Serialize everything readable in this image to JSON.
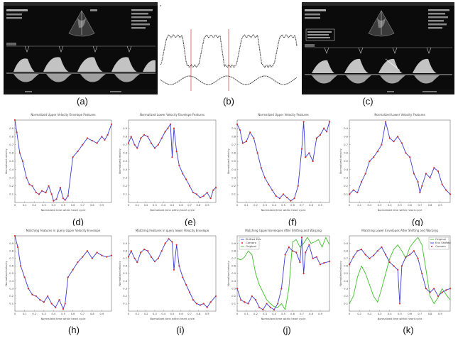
{
  "captions": {
    "a": "(a)",
    "b": "(b)",
    "c": "(c)",
    "d": "(d)",
    "e": "(e)",
    "f": "(f)",
    "g": "(g)",
    "h": "(h)",
    "i": "(i)",
    "j": "(j)",
    "k": "(k)"
  },
  "colors": {
    "ultrasound_bg": "#0b0b0b",
    "series_blue": "#3b3bd6",
    "marker_red": "#d42a2a",
    "series_green": "#3fbf2a",
    "trace_red_line": "#e05050"
  },
  "chart_data": [
    {
      "id": "d",
      "type": "line",
      "title": "Normalized Upper Velocity Envelope Features",
      "xlabel": "Normalized time within heart cycle",
      "ylabel": "Normalized velocity",
      "xlim": [
        0,
        1
      ],
      "ylim": [
        0,
        1
      ],
      "x_ticks": [
        "0",
        "0.1",
        "0.2",
        "0.3",
        "0.4",
        "0.5",
        "0.6",
        "0.7",
        "0.8",
        "0.9"
      ],
      "y_ticks": [
        "0.1",
        "0.2",
        "0.3",
        "0.4",
        "0.5",
        "0.6",
        "0.7",
        "0.8",
        "0.9"
      ],
      "series": [
        {
          "x": [
            0,
            0.02,
            0.05,
            0.08,
            0.12,
            0.15,
            0.18,
            0.22,
            0.25,
            0.28,
            0.32,
            0.35,
            0.38,
            0.4,
            0.43,
            0.47,
            0.5,
            0.52,
            0.55,
            0.6,
            0.65,
            0.7,
            0.75,
            0.8,
            0.85,
            0.9,
            0.93,
            0.96,
            1.0
          ],
          "y": [
            1.0,
            0.85,
            0.6,
            0.5,
            0.3,
            0.22,
            0.2,
            0.12,
            0.1,
            0.14,
            0.12,
            0.2,
            0.1,
            0.02,
            0.04,
            0.18,
            0.05,
            0.03,
            0.08,
            0.55,
            0.62,
            0.7,
            0.78,
            0.75,
            0.72,
            0.8,
            0.76,
            0.82,
            0.95
          ]
        }
      ]
    },
    {
      "id": "e",
      "type": "line",
      "title": "Normalized Lower Velocity Envelope Features",
      "xlabel": "Normalized time within heart cycle",
      "ylabel": "Normalized velocity",
      "xlim": [
        0,
        1
      ],
      "ylim": [
        0,
        1
      ],
      "x_ticks": [
        "0",
        "0.1",
        "0.2",
        "0.3",
        "0.4",
        "0.5",
        "0.6",
        "0.7",
        "0.8",
        "0.9"
      ],
      "y_ticks": [
        "0.1",
        "0.2",
        "0.3",
        "0.4",
        "0.5",
        "0.6",
        "0.7",
        "0.8",
        "0.9"
      ],
      "series": [
        {
          "x": [
            0,
            0.03,
            0.07,
            0.1,
            0.14,
            0.18,
            0.22,
            0.26,
            0.3,
            0.34,
            0.38,
            0.42,
            0.45,
            0.48,
            0.5,
            0.52,
            0.55,
            0.58,
            0.62,
            0.66,
            0.7,
            0.74,
            0.78,
            0.82,
            0.86,
            0.9,
            0.94,
            0.97,
            1.0
          ],
          "y": [
            0.72,
            0.8,
            0.7,
            0.66,
            0.78,
            0.82,
            0.8,
            0.72,
            0.66,
            0.7,
            0.78,
            0.86,
            0.9,
            0.95,
            0.55,
            0.9,
            0.62,
            0.45,
            0.35,
            0.28,
            0.2,
            0.12,
            0.1,
            0.06,
            0.08,
            0.12,
            0.05,
            0.15,
            0.18
          ]
        }
      ]
    },
    {
      "id": "f",
      "type": "line",
      "title": "Normalized Upper Velocity Features",
      "xlabel": "Normalized time within heart cycle",
      "ylabel": "Normalized velocity",
      "xlim": [
        0,
        1
      ],
      "ylim": [
        0,
        1
      ],
      "x_ticks": [
        "0",
        "0.1",
        "0.2",
        "0.3",
        "0.4",
        "0.5",
        "0.6",
        "0.7",
        "0.8",
        "0.9"
      ],
      "y_ticks": [
        "0.1",
        "0.2",
        "0.3",
        "0.4",
        "0.5",
        "0.6",
        "0.7",
        "0.8",
        "0.9"
      ],
      "series": [
        {
          "x": [
            0,
            0.03,
            0.06,
            0.1,
            0.14,
            0.18,
            0.22,
            0.26,
            0.3,
            0.34,
            0.38,
            0.42,
            0.46,
            0.5,
            0.54,
            0.58,
            0.62,
            0.66,
            0.7,
            0.72,
            0.74,
            0.78,
            0.82,
            0.86,
            0.9,
            0.94,
            0.97,
            1.0
          ],
          "y": [
            0.95,
            0.88,
            0.72,
            0.74,
            0.85,
            0.78,
            0.6,
            0.42,
            0.3,
            0.22,
            0.15,
            0.08,
            0.05,
            0.1,
            0.06,
            0.02,
            0.05,
            0.2,
            0.65,
            0.98,
            0.55,
            0.6,
            0.5,
            0.78,
            0.82,
            0.9,
            0.86,
            0.98
          ]
        }
      ]
    },
    {
      "id": "g",
      "type": "line",
      "title": "Normalized Lower Velocity Features",
      "xlabel": "Normalized time within heart cycle",
      "ylabel": "Normalized velocity",
      "xlim": [
        0,
        1
      ],
      "ylim": [
        0,
        1
      ],
      "x_ticks": [
        "0",
        "0.1",
        "0.2",
        "0.3",
        "0.4",
        "0.5",
        "0.6",
        "0.7",
        "0.8",
        "0.9"
      ],
      "y_ticks": [
        "0.1",
        "0.2",
        "0.3",
        "0.4",
        "0.5",
        "0.6",
        "0.7",
        "0.8",
        "0.9"
      ],
      "series": [
        {
          "x": [
            0,
            0.04,
            0.08,
            0.12,
            0.16,
            0.2,
            0.24,
            0.28,
            0.32,
            0.36,
            0.4,
            0.44,
            0.48,
            0.52,
            0.56,
            0.6,
            0.64,
            0.68,
            0.7,
            0.72,
            0.76,
            0.8,
            0.84,
            0.88,
            0.92,
            0.96,
            1.0
          ],
          "y": [
            0.1,
            0.15,
            0.12,
            0.25,
            0.35,
            0.5,
            0.55,
            0.62,
            0.7,
            0.98,
            0.78,
            0.74,
            0.8,
            0.72,
            0.6,
            0.55,
            0.35,
            0.25,
            0.12,
            0.2,
            0.35,
            0.3,
            0.42,
            0.38,
            0.22,
            0.15,
            0.1
          ]
        }
      ]
    },
    {
      "id": "h",
      "type": "line",
      "title": "Matching Features in query Upper Velocity Envelope",
      "xlabel": "Normalized time within heart cycle",
      "ylabel": "Normalized velocity",
      "xlim": [
        0,
        1
      ],
      "ylim": [
        0,
        1
      ],
      "x_ticks": [
        "0",
        "0.1",
        "0.2",
        "0.3",
        "0.4",
        "0.5",
        "0.6",
        "0.7",
        "0.8",
        "0.9"
      ],
      "y_ticks": [
        "0.1",
        "0.2",
        "0.3",
        "0.4",
        "0.5",
        "0.6",
        "0.7",
        "0.8",
        "0.9"
      ],
      "series": [
        {
          "x": [
            0,
            0.03,
            0.06,
            0.1,
            0.14,
            0.18,
            0.22,
            0.26,
            0.3,
            0.34,
            0.38,
            0.42,
            0.46,
            0.5,
            0.52,
            0.55,
            0.6,
            0.65,
            0.7,
            0.75,
            0.8,
            0.85,
            0.9,
            0.95,
            1.0
          ],
          "y": [
            1.0,
            0.85,
            0.6,
            0.45,
            0.3,
            0.22,
            0.2,
            0.15,
            0.12,
            0.2,
            0.1,
            0.05,
            0.15,
            0.03,
            0.1,
            0.45,
            0.55,
            0.65,
            0.72,
            0.8,
            0.7,
            0.78,
            0.74,
            0.72,
            0.74
          ]
        }
      ]
    },
    {
      "id": "i",
      "type": "line",
      "title": "Matching Features in query lower Velocity Envelope",
      "xlabel": "Normalized time within heart cycle",
      "ylabel": "Normalized velocity",
      "xlim": [
        0,
        1
      ],
      "ylim": [
        0,
        1
      ],
      "x_ticks": [
        "0",
        "0.1",
        "0.2",
        "0.3",
        "0.4",
        "0.5",
        "0.6",
        "0.7",
        "0.8",
        "0.9"
      ],
      "y_ticks": [
        "0.1",
        "0.2",
        "0.3",
        "0.4",
        "0.5",
        "0.6",
        "0.7",
        "0.8",
        "0.9"
      ],
      "series": [
        {
          "x": [
            0,
            0.03,
            0.07,
            0.1,
            0.14,
            0.18,
            0.22,
            0.26,
            0.3,
            0.34,
            0.38,
            0.42,
            0.46,
            0.5,
            0.52,
            0.55,
            0.58,
            0.62,
            0.66,
            0.7,
            0.74,
            0.78,
            0.82,
            0.86,
            0.9,
            0.94,
            1.0
          ],
          "y": [
            0.72,
            0.8,
            0.7,
            0.65,
            0.78,
            0.82,
            0.8,
            0.72,
            0.66,
            0.7,
            0.8,
            0.9,
            0.96,
            0.92,
            0.55,
            0.88,
            0.6,
            0.45,
            0.35,
            0.25,
            0.15,
            0.1,
            0.08,
            0.1,
            0.05,
            0.12,
            0.2
          ]
        }
      ]
    },
    {
      "id": "j",
      "type": "line",
      "title": "Matching Upper Envelopes After Shifting and Warping",
      "xlabel": "Normalized time within heart cycle",
      "ylabel": "Normalized velocity",
      "xlim": [
        0,
        1
      ],
      "ylim": [
        0,
        1
      ],
      "x_ticks": [
        "0",
        "0.1",
        "0.2",
        "0.3",
        "0.4",
        "0.5",
        "0.6",
        "0.7",
        "0.8",
        "0.9"
      ],
      "y_ticks": [
        "0.1",
        "0.2",
        "0.3",
        "0.4",
        "0.5",
        "0.6",
        "0.7",
        "0.8",
        "0.9"
      ],
      "legend": [
        "Shifted Env",
        "Corners",
        "Original"
      ],
      "series": [
        {
          "name": "Shifted Env",
          "color": "blue",
          "x": [
            0,
            0.04,
            0.08,
            0.12,
            0.16,
            0.2,
            0.24,
            0.28,
            0.32,
            0.36,
            0.4,
            0.44,
            0.48,
            0.52,
            0.56,
            0.6,
            0.64,
            0.68,
            0.7,
            0.72,
            0.74,
            0.78,
            0.82,
            0.86,
            0.9,
            0.94,
            1.0
          ],
          "y": [
            0.3,
            0.15,
            0.12,
            0.1,
            0.2,
            0.15,
            0.05,
            0.02,
            0.1,
            0.05,
            0.02,
            0.1,
            0.3,
            0.75,
            0.85,
            0.8,
            0.78,
            0.65,
            0.98,
            0.5,
            0.78,
            0.88,
            0.7,
            0.72,
            0.62,
            0.64,
            0.66
          ]
        },
        {
          "name": "Original",
          "color": "green",
          "x": [
            0,
            0.04,
            0.08,
            0.12,
            0.16,
            0.2,
            0.24,
            0.28,
            0.32,
            0.36,
            0.4,
            0.44,
            0.48,
            0.52,
            0.56,
            0.6,
            0.64,
            0.68,
            0.72,
            0.76,
            0.8,
            0.84,
            0.88,
            0.92,
            0.96,
            1.0
          ],
          "y": [
            0.7,
            0.68,
            0.72,
            0.8,
            0.75,
            0.5,
            0.35,
            0.25,
            0.15,
            0.1,
            0.06,
            0.05,
            0.1,
            0.02,
            0.3,
            0.92,
            0.95,
            0.85,
            0.9,
            0.98,
            0.9,
            0.92,
            0.95,
            0.85,
            0.98,
            0.88
          ]
        }
      ]
    },
    {
      "id": "k",
      "type": "line",
      "title": "Matching Lower Envelopes After Shifting and Warping",
      "xlabel": "Normalized time within heart cycle",
      "ylabel": "Normalized velocity",
      "xlim": [
        0,
        1
      ],
      "ylim": [
        0,
        1
      ],
      "x_ticks": [
        "0",
        "0.1",
        "0.2",
        "0.3",
        "0.4",
        "0.5",
        "0.6",
        "0.7",
        "0.8",
        "0.9"
      ],
      "y_ticks": [
        "0.1",
        "0.2",
        "0.3",
        "0.4",
        "0.5",
        "0.6",
        "0.7",
        "0.8",
        "0.9"
      ],
      "legend": [
        "Original",
        "Env Shifted",
        "Corners"
      ],
      "series": [
        {
          "name": "Env Shifted",
          "color": "blue",
          "x": [
            0,
            0.04,
            0.08,
            0.12,
            0.16,
            0.2,
            0.24,
            0.28,
            0.32,
            0.36,
            0.4,
            0.44,
            0.48,
            0.5,
            0.52,
            0.56,
            0.6,
            0.64,
            0.68,
            0.72,
            0.76,
            0.8,
            0.84,
            0.88,
            0.92,
            0.96,
            1.0
          ],
          "y": [
            0.62,
            0.72,
            0.8,
            0.82,
            0.75,
            0.7,
            0.74,
            0.8,
            0.85,
            0.75,
            0.65,
            0.6,
            0.55,
            0.1,
            0.6,
            0.72,
            0.75,
            0.8,
            0.7,
            0.5,
            0.3,
            0.25,
            0.3,
            0.2,
            0.25,
            0.28,
            0.3
          ]
        },
        {
          "name": "Original",
          "color": "green",
          "x": [
            0,
            0.04,
            0.08,
            0.12,
            0.16,
            0.2,
            0.24,
            0.28,
            0.32,
            0.36,
            0.4,
            0.44,
            0.48,
            0.52,
            0.56,
            0.6,
            0.64,
            0.68,
            0.72,
            0.76,
            0.8,
            0.84,
            0.88,
            0.92,
            0.96,
            1.0
          ],
          "y": [
            0.1,
            0.2,
            0.45,
            0.6,
            0.5,
            0.35,
            0.2,
            0.12,
            0.3,
            0.5,
            0.7,
            0.82,
            0.88,
            0.8,
            0.7,
            0.85,
            0.92,
            0.98,
            0.88,
            0.55,
            0.2,
            0.1,
            0.18,
            0.3,
            0.22,
            0.15
          ]
        }
      ]
    }
  ]
}
